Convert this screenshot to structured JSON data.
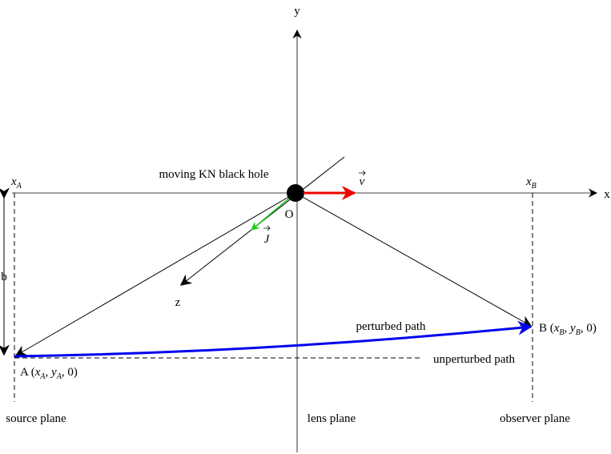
{
  "axes": {
    "x": "x",
    "y": "y",
    "z": "z",
    "origin": "O"
  },
  "black_hole": "moving KN black hole",
  "velocity": "v",
  "spin": "J",
  "plane_marks": {
    "a": [
      {
        "t": "x",
        "style": "italic"
      },
      {
        "t": "A",
        "style": "sub"
      }
    ],
    "b": [
      {
        "t": "x",
        "style": "italic"
      },
      {
        "t": "B",
        "style": "sub"
      }
    ]
  },
  "impact": "b",
  "paths": {
    "perturbed": "perturbed path",
    "unperturbed": "unperturbed path"
  },
  "points": {
    "a": [
      {
        "t": "A (",
        "style": "plain"
      },
      {
        "t": "x",
        "style": "italic"
      },
      {
        "t": "A",
        "style": "sub"
      },
      {
        "t": ", ",
        "style": "plain"
      },
      {
        "t": "y",
        "style": "italic"
      },
      {
        "t": "A",
        "style": "sub"
      },
      {
        "t": ", 0)",
        "style": "plain"
      }
    ],
    "b": [
      {
        "t": "B (",
        "style": "plain"
      },
      {
        "t": "x",
        "style": "italic"
      },
      {
        "t": "B",
        "style": "sub"
      },
      {
        "t": ", ",
        "style": "plain"
      },
      {
        "t": "y",
        "style": "italic"
      },
      {
        "t": "B",
        "style": "sub"
      },
      {
        "t": ", 0)",
        "style": "plain"
      }
    ]
  },
  "planes": {
    "source": "source plane",
    "lens": "lens plane",
    "observer": "observer plane"
  }
}
